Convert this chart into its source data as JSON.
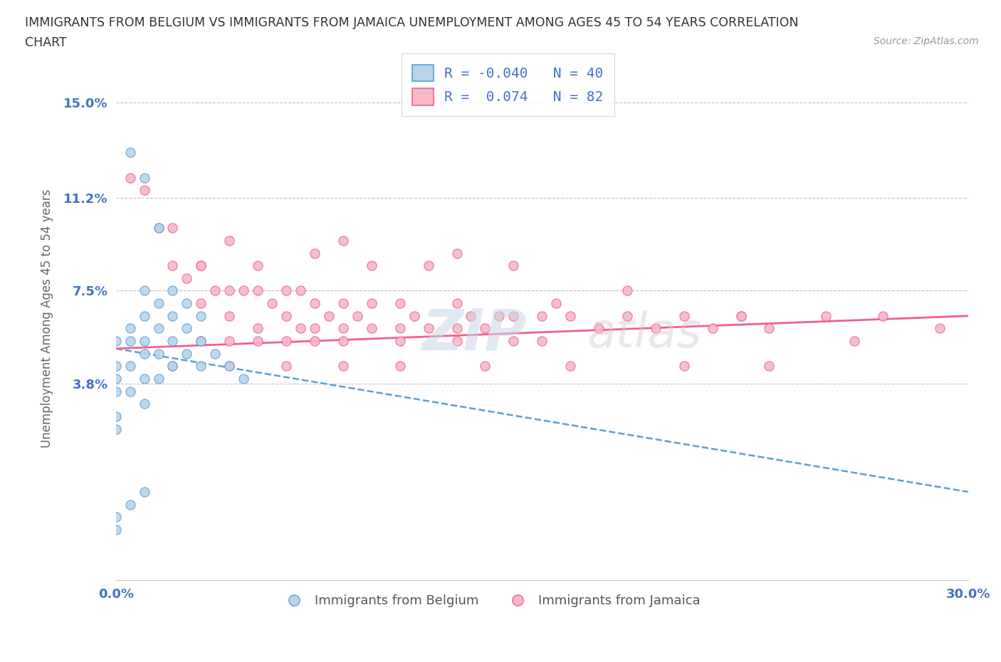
{
  "title_line1": "IMMIGRANTS FROM BELGIUM VS IMMIGRANTS FROM JAMAICA UNEMPLOYMENT AMONG AGES 45 TO 54 YEARS CORRELATION",
  "title_line2": "CHART",
  "source": "Source: ZipAtlas.com",
  "ylabel": "Unemployment Among Ages 45 to 54 years",
  "xlim": [
    0.0,
    0.3
  ],
  "ylim": [
    -0.04,
    0.168
  ],
  "yticks": [
    0.038,
    0.075,
    0.112,
    0.15
  ],
  "ytick_labels": [
    "3.8%",
    "7.5%",
    "11.2%",
    "15.0%"
  ],
  "xticks": [
    0.0,
    0.05,
    0.1,
    0.15,
    0.2,
    0.25,
    0.3
  ],
  "xtick_labels": [
    "0.0%",
    "",
    "",
    "",
    "",
    "",
    "30.0%"
  ],
  "watermark_zip": "ZIP",
  "watermark_atlas": "atlas",
  "legend_r_belgium": "-0.040",
  "legend_n_belgium": "40",
  "legend_r_jamaica": "0.074",
  "legend_n_jamaica": "82",
  "color_belgium_face": "#b8d4ea",
  "color_belgium_edge": "#5a9fd4",
  "color_jamaica_face": "#f7b8c8",
  "color_jamaica_edge": "#f06090",
  "color_line_belgium": "#5a9fd4",
  "color_line_jamaica": "#f06090",
  "color_ticks": "#4472c4",
  "belgium_x": [
    0.0,
    0.0,
    0.0,
    0.0,
    0.0,
    0.0,
    0.005,
    0.005,
    0.005,
    0.005,
    0.01,
    0.01,
    0.01,
    0.01,
    0.01,
    0.01,
    0.015,
    0.015,
    0.015,
    0.015,
    0.02,
    0.02,
    0.02,
    0.025,
    0.025,
    0.03,
    0.03,
    0.035,
    0.04,
    0.045,
    0.005,
    0.01,
    0.015,
    0.02,
    0.025,
    0.03,
    0.01,
    0.005,
    0.0,
    0.0
  ],
  "belgium_y": [
    0.055,
    0.045,
    0.04,
    0.035,
    0.025,
    0.02,
    0.06,
    0.055,
    0.045,
    0.035,
    0.075,
    0.065,
    0.055,
    0.05,
    0.04,
    0.03,
    0.07,
    0.06,
    0.05,
    0.04,
    0.065,
    0.055,
    0.045,
    0.06,
    0.05,
    0.055,
    0.045,
    0.05,
    0.045,
    0.04,
    0.13,
    0.12,
    0.1,
    0.075,
    0.07,
    0.065,
    -0.005,
    -0.01,
    -0.015,
    -0.02
  ],
  "jamaica_x": [
    0.005,
    0.01,
    0.015,
    0.02,
    0.02,
    0.025,
    0.03,
    0.03,
    0.035,
    0.04,
    0.04,
    0.045,
    0.05,
    0.05,
    0.055,
    0.06,
    0.06,
    0.065,
    0.065,
    0.07,
    0.07,
    0.075,
    0.08,
    0.08,
    0.085,
    0.09,
    0.09,
    0.1,
    0.1,
    0.105,
    0.11,
    0.12,
    0.12,
    0.125,
    0.13,
    0.135,
    0.14,
    0.14,
    0.15,
    0.155,
    0.16,
    0.17,
    0.18,
    0.19,
    0.2,
    0.21,
    0.22,
    0.23,
    0.25,
    0.27,
    0.29,
    0.03,
    0.04,
    0.05,
    0.06,
    0.07,
    0.08,
    0.1,
    0.12,
    0.15,
    0.02,
    0.04,
    0.06,
    0.08,
    0.1,
    0.13,
    0.16,
    0.2,
    0.23,
    0.03,
    0.05,
    0.07,
    0.09,
    0.11,
    0.14,
    0.18,
    0.22,
    0.26,
    0.04,
    0.08,
    0.12
  ],
  "jamaica_y": [
    0.12,
    0.115,
    0.1,
    0.1,
    0.085,
    0.08,
    0.085,
    0.07,
    0.075,
    0.075,
    0.065,
    0.075,
    0.075,
    0.06,
    0.07,
    0.075,
    0.065,
    0.075,
    0.06,
    0.07,
    0.06,
    0.065,
    0.07,
    0.06,
    0.065,
    0.07,
    0.06,
    0.07,
    0.06,
    0.065,
    0.06,
    0.07,
    0.06,
    0.065,
    0.06,
    0.065,
    0.065,
    0.055,
    0.065,
    0.07,
    0.065,
    0.06,
    0.065,
    0.06,
    0.065,
    0.06,
    0.065,
    0.06,
    0.065,
    0.065,
    0.06,
    0.055,
    0.055,
    0.055,
    0.055,
    0.055,
    0.055,
    0.055,
    0.055,
    0.055,
    0.045,
    0.045,
    0.045,
    0.045,
    0.045,
    0.045,
    0.045,
    0.045,
    0.045,
    0.085,
    0.085,
    0.09,
    0.085,
    0.085,
    0.085,
    0.075,
    0.065,
    0.055,
    0.095,
    0.095,
    0.09
  ]
}
